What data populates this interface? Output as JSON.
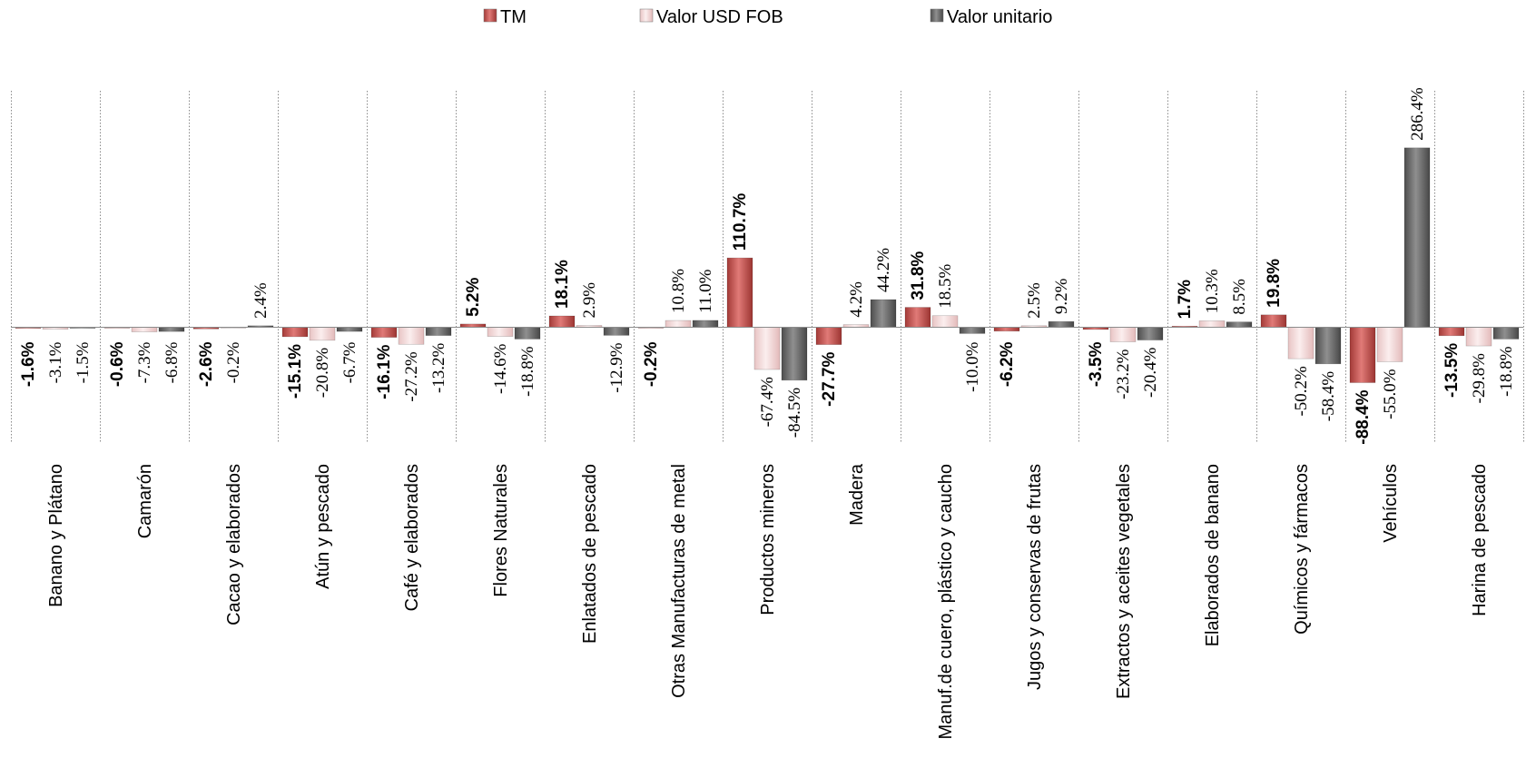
{
  "chart_data": {
    "type": "bar",
    "title": "",
    "xlabel": "",
    "ylabel": "",
    "ylim": [
      -100,
      300
    ],
    "grid": "vertical dotted separators between categories",
    "legend_position": "top",
    "categories": [
      "Banano y Plátano",
      "Camarón",
      "Cacao y elaborados",
      "Atún y pescado",
      "Café y elaborados",
      "Flores Naturales",
      "Enlatados de pescado",
      "Otras Manufacturas de metal",
      "Productos mineros",
      "Madera",
      "Manuf.de cuero, plástico y caucho",
      "Jugos y conservas de frutas",
      "Extractos y aceites vegetales",
      "Elaborados de banano",
      "Químicos y fármacos",
      "Vehículos",
      "Harina de pescado"
    ],
    "series": [
      {
        "name": "TM",
        "color": "#c0504d",
        "values": [
          -1.6,
          -0.6,
          -2.6,
          -15.1,
          -16.1,
          5.2,
          18.1,
          -0.2,
          110.7,
          -27.7,
          31.8,
          -6.2,
          -3.5,
          1.7,
          19.8,
          -88.4,
          -13.5
        ],
        "labels": [
          "-1.6%",
          "-0.6%",
          "-2.6%",
          "-15.1%",
          "-16.1%",
          "5.2%",
          "18.1%",
          "-0.2%",
          "110.7%",
          "-27.7%",
          "31.8%",
          "-6.2%",
          "-3.5%",
          "1.7%",
          "19.8%",
          "-88.4%",
          "-13.5%"
        ]
      },
      {
        "name": "Valor  USD FOB",
        "color": "#f2d7d7",
        "values": [
          -3.1,
          -7.3,
          -0.2,
          -20.8,
          -27.2,
          -14.6,
          2.9,
          10.8,
          -67.4,
          4.2,
          18.5,
          2.5,
          -23.2,
          10.3,
          -50.2,
          -55.0,
          -29.8
        ],
        "labels": [
          "-3.1%",
          "-7.3%",
          "-0.2%",
          "-20.8%",
          "-27.2%",
          "-14.6%",
          "2.9%",
          "10.8%",
          "-67.4%",
          "4.2%",
          "18.5%",
          "2.5%",
          "-23.2%",
          "10.3%",
          "-50.2%",
          "-55.0%",
          "-29.8%"
        ]
      },
      {
        "name": "Valor unitario",
        "color": "#6d6d6d",
        "values": [
          -1.5,
          -6.8,
          2.4,
          -6.7,
          -13.2,
          -18.8,
          -12.9,
          11.0,
          -84.5,
          44.2,
          -10.0,
          9.2,
          -20.4,
          8.5,
          -58.4,
          286.4,
          -18.8
        ],
        "labels": [
          "-1.5%",
          "-6.8%",
          "2.4%",
          "-6.7%",
          "-13.2%",
          "-18.8%",
          "-12.9%",
          "11.0%",
          "-84.5%",
          "44.2%",
          "-10.0%",
          "9.2%",
          "-20.4%",
          "8.5%",
          "-58.4%",
          "286.4%",
          "-18.8%"
        ]
      }
    ]
  }
}
